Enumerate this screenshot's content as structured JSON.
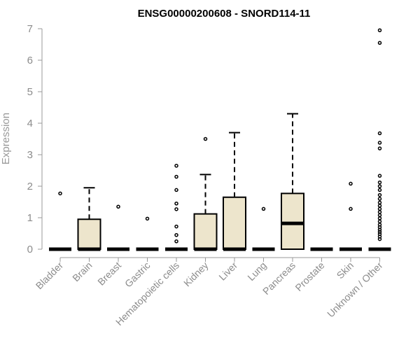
{
  "chart_data": {
    "type": "box",
    "title": "ENSG00000200608 - SNORD114-11",
    "xlabel": "",
    "ylabel": "Expression",
    "ylim": [
      0,
      7
    ],
    "yticks": [
      0,
      1,
      2,
      3,
      4,
      5,
      6,
      7
    ],
    "grid": false,
    "colors": {
      "box_fill": "#ede5cc",
      "stroke": "#000000",
      "axis": "#999999"
    },
    "categories": [
      "Bladder",
      "Brain",
      "Breast",
      "Gastric",
      "Hematopoietic cells",
      "Kidney",
      "Liver",
      "Lung",
      "Pancreas",
      "Prostate",
      "Skin",
      "Unknown / Other"
    ],
    "boxes": [
      {
        "category": "Bladder",
        "min": 0,
        "q1": 0,
        "median": 0,
        "q3": 0,
        "max": 0,
        "outliers": [
          1.77
        ]
      },
      {
        "category": "Brain",
        "min": 0,
        "q1": 0,
        "median": 0,
        "q3": 0.95,
        "max": 1.95,
        "outliers": []
      },
      {
        "category": "Breast",
        "min": 0,
        "q1": 0,
        "median": 0,
        "q3": 0,
        "max": 0,
        "outliers": [
          1.35
        ]
      },
      {
        "category": "Gastric",
        "min": 0,
        "q1": 0,
        "median": 0,
        "q3": 0,
        "max": 0,
        "outliers": [
          0.97
        ]
      },
      {
        "category": "Hematopoietic cells",
        "min": 0,
        "q1": 0,
        "median": 0,
        "q3": 0,
        "max": 0,
        "outliers": [
          2.65,
          2.3,
          1.88,
          1.45,
          1.27,
          0.72,
          0.45,
          0.25
        ]
      },
      {
        "category": "Kidney",
        "min": 0,
        "q1": 0,
        "median": 0,
        "q3": 1.12,
        "max": 2.37,
        "outliers": [
          3.5
        ]
      },
      {
        "category": "Liver",
        "min": 0,
        "q1": 0,
        "median": 0,
        "q3": 1.65,
        "max": 3.7,
        "outliers": []
      },
      {
        "category": "Lung",
        "min": 0,
        "q1": 0,
        "median": 0,
        "q3": 0,
        "max": 0,
        "outliers": [
          1.28
        ]
      },
      {
        "category": "Pancreas",
        "min": 0,
        "q1": 0,
        "median": 0.82,
        "q3": 1.77,
        "max": 4.3,
        "outliers": []
      },
      {
        "category": "Prostate",
        "min": 0,
        "q1": 0,
        "median": 0,
        "q3": 0,
        "max": 0,
        "outliers": []
      },
      {
        "category": "Skin",
        "min": 0,
        "q1": 0,
        "median": 0,
        "q3": 0,
        "max": 0,
        "outliers": [
          2.08,
          1.28
        ]
      },
      {
        "category": "Unknown / Other",
        "min": 0,
        "q1": 0,
        "median": 0,
        "q3": 0,
        "max": 0,
        "outliers": [
          6.95,
          6.55,
          3.68,
          3.38,
          3.2,
          2.33,
          2.12,
          2.0,
          1.88,
          1.72,
          1.6,
          1.48,
          1.38,
          1.28,
          1.18,
          1.08,
          0.98,
          0.88,
          0.78,
          0.7,
          0.62,
          0.55,
          0.48,
          0.4,
          0.32
        ]
      }
    ]
  }
}
